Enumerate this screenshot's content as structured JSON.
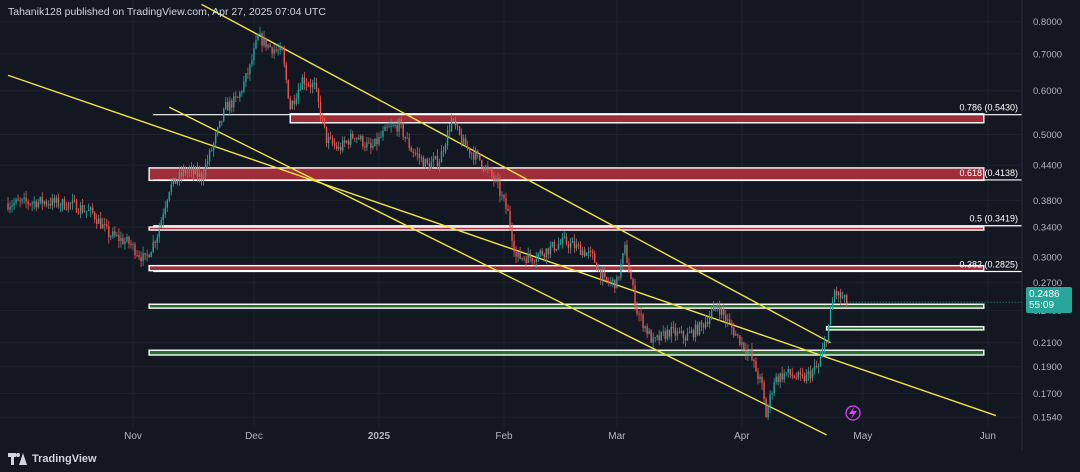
{
  "header": {
    "text": "Tahanik128 published on TradingView.com, Apr 27, 2025 07:04 UTC"
  },
  "footer": {
    "brand": "TradingView"
  },
  "last_price": {
    "value": "0.2486",
    "countdown": "55:09",
    "color": "#26a69a"
  },
  "colors": {
    "background": "#131722",
    "up": "#26a69a",
    "down": "#ef5350",
    "trendline": "#f0e442",
    "resistance_fill": "#b9333e",
    "support_fill": "#2e7d32",
    "fib_line": "#ffffff"
  },
  "chart_data": {
    "type": "candlestick",
    "title": "",
    "ylabel": "",
    "y_scale": "log",
    "ylim": [
      0.14,
      0.84
    ],
    "xlim": [
      "2024-10-01",
      "2025-06-06"
    ],
    "y_ticks": [
      "0.8000",
      "0.7000",
      "0.6000",
      "0.5000",
      "0.4400",
      "0.3800",
      "0.3400",
      "0.3000",
      "0.2700",
      "0.2400",
      "0.2100",
      "0.1900",
      "0.1700",
      "0.1540"
    ],
    "x_ticks": [
      {
        "label": "Nov",
        "date": "2024-11-01",
        "bold": false
      },
      {
        "label": "Dec",
        "date": "2024-12-01",
        "bold": false
      },
      {
        "label": "2025",
        "date": "2025-01-01",
        "bold": true
      },
      {
        "label": "Feb",
        "date": "2025-02-01",
        "bold": false
      },
      {
        "label": "Mar",
        "date": "2025-03-01",
        "bold": false
      },
      {
        "label": "Apr",
        "date": "2025-04-01",
        "bold": false
      },
      {
        "label": "May",
        "date": "2025-05-01",
        "bold": false
      },
      {
        "label": "Jun",
        "date": "2025-06-01",
        "bold": false
      }
    ],
    "price_path": [
      [
        "2024-10-01",
        0.375
      ],
      [
        "2024-10-10",
        0.378
      ],
      [
        "2024-10-17",
        0.373
      ],
      [
        "2024-10-22",
        0.36
      ],
      [
        "2024-10-26",
        0.33
      ],
      [
        "2024-10-31",
        0.318
      ],
      [
        "2024-11-04",
        0.296
      ],
      [
        "2024-11-07",
        0.33
      ],
      [
        "2024-11-10",
        0.4
      ],
      [
        "2024-11-14",
        0.43
      ],
      [
        "2024-11-18",
        0.42
      ],
      [
        "2024-11-21",
        0.48
      ],
      [
        "2024-11-24",
        0.56
      ],
      [
        "2024-11-27",
        0.58
      ],
      [
        "2024-11-30",
        0.66
      ],
      [
        "2024-12-02",
        0.75
      ],
      [
        "2024-12-05",
        0.72
      ],
      [
        "2024-12-08",
        0.7
      ],
      [
        "2024-12-10",
        0.56
      ],
      [
        "2024-12-13",
        0.63
      ],
      [
        "2024-12-16",
        0.61
      ],
      [
        "2024-12-19",
        0.49
      ],
      [
        "2024-12-22",
        0.47
      ],
      [
        "2024-12-26",
        0.5
      ],
      [
        "2024-12-30",
        0.47
      ],
      [
        "2025-01-03",
        0.51
      ],
      [
        "2025-01-06",
        0.52
      ],
      [
        "2025-01-09",
        0.47
      ],
      [
        "2025-01-13",
        0.44
      ],
      [
        "2025-01-16",
        0.45
      ],
      [
        "2025-01-19",
        0.53
      ],
      [
        "2025-01-22",
        0.48
      ],
      [
        "2025-01-26",
        0.45
      ],
      [
        "2025-01-30",
        0.41
      ],
      [
        "2025-02-02",
        0.36
      ],
      [
        "2025-02-04",
        0.3
      ],
      [
        "2025-02-08",
        0.3
      ],
      [
        "2025-02-12",
        0.31
      ],
      [
        "2025-02-16",
        0.32
      ],
      [
        "2025-02-20",
        0.31
      ],
      [
        "2025-02-23",
        0.3
      ],
      [
        "2025-02-26",
        0.27
      ],
      [
        "2025-03-01",
        0.27
      ],
      [
        "2025-03-03",
        0.31
      ],
      [
        "2025-03-06",
        0.24
      ],
      [
        "2025-03-10",
        0.21
      ],
      [
        "2025-03-14",
        0.22
      ],
      [
        "2025-03-18",
        0.215
      ],
      [
        "2025-03-22",
        0.225
      ],
      [
        "2025-03-26",
        0.245
      ],
      [
        "2025-03-30",
        0.22
      ],
      [
        "2025-04-03",
        0.2
      ],
      [
        "2025-04-06",
        0.175
      ],
      [
        "2025-04-07",
        0.155
      ],
      [
        "2025-04-09",
        0.18
      ],
      [
        "2025-04-12",
        0.185
      ],
      [
        "2025-04-16",
        0.18
      ],
      [
        "2025-04-20",
        0.19
      ],
      [
        "2025-04-22",
        0.215
      ],
      [
        "2025-04-24",
        0.26
      ],
      [
        "2025-04-25",
        0.255
      ],
      [
        "2025-04-27",
        0.2486
      ]
    ],
    "trendlines": [
      {
        "name": "channel-upper",
        "from": [
          "2024-11-18",
          0.86
        ],
        "to": [
          "2025-04-23",
          0.21
        ]
      },
      {
        "name": "channel-lower",
        "from": [
          "2024-10-01",
          0.64
        ],
        "to": [
          "2025-06-03",
          0.155
        ]
      },
      {
        "name": "channel-lower-parallel",
        "from": [
          "2024-11-10",
          0.56
        ],
        "to": [
          "2025-04-22",
          0.143
        ]
      }
    ],
    "zones": [
      {
        "kind": "resistance",
        "from": "2024-12-10",
        "to": "2025-05-31",
        "y1": 0.525,
        "y2": 0.545
      },
      {
        "kind": "resistance",
        "from": "2024-11-05",
        "to": "2025-05-31",
        "y1": 0.413,
        "y2": 0.435
      },
      {
        "kind": "resistance",
        "from": "2024-11-05",
        "to": "2025-05-31",
        "y1": 0.337,
        "y2": 0.34
      },
      {
        "kind": "resistance",
        "from": "2024-11-05",
        "to": "2025-05-31",
        "y1": 0.2835,
        "y2": 0.2895
      },
      {
        "kind": "support",
        "from": "2024-11-05",
        "to": "2025-05-31",
        "y1": 0.2425,
        "y2": 0.2465
      },
      {
        "kind": "support",
        "from": "2025-04-22",
        "to": "2025-05-31",
        "y1": 0.2215,
        "y2": 0.2245
      },
      {
        "kind": "support",
        "from": "2024-11-05",
        "to": "2025-05-31",
        "y1": 0.1995,
        "y2": 0.2035
      }
    ],
    "fib_levels": [
      {
        "label": "0.786 (0.5430)",
        "value": 0.543,
        "from": "2024-11-06"
      },
      {
        "label": "0.618 (0.4138)",
        "value": 0.4138,
        "from": "2024-11-06"
      },
      {
        "label": "0.5 (0.3419)",
        "value": 0.3419,
        "from": "2024-11-06"
      },
      {
        "label": "0.382 (0.2825)",
        "value": 0.2825,
        "from": "2024-11-06"
      }
    ]
  }
}
